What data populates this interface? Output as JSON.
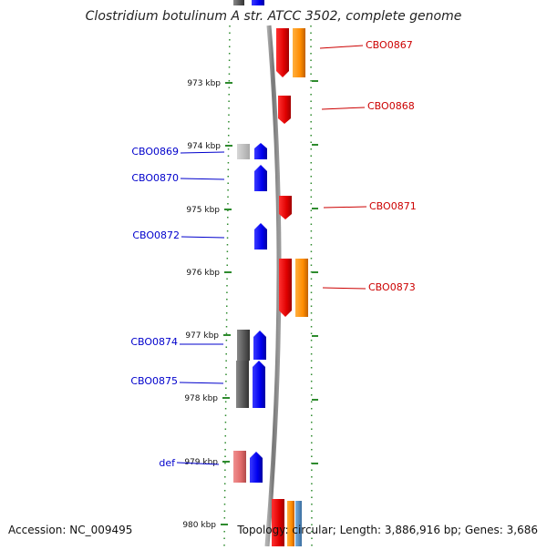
{
  "title": "Clostridium botulinum A str. ATCC 3502, complete genome",
  "footer": {
    "accession": "Accession: NC_009495",
    "topology": "Topology: circular; Length: 3,886,916 bp; Genes: 3,686"
  },
  "colors": {
    "backbone": "#808080",
    "dotted_axis": "#2e8b2e",
    "forward_label": "#cc0000",
    "reverse_label": "#0000cc",
    "cds_red": "#ff0000",
    "cds_blue": "#0000ff",
    "cds_orange": "#ff8c00",
    "gene_gray": "#5a5a5a",
    "gene_pink": "#e07070",
    "rna_steelblue": "#4682b4"
  },
  "ticks": [
    "973 kbp",
    "974 kbp",
    "975 kbp",
    "976 kbp",
    "977 kbp",
    "978 kbp",
    "979 kbp",
    "980 kbp"
  ],
  "genes": [
    {
      "label": "CBO0867",
      "strand": "+"
    },
    {
      "label": "CBO0868",
      "strand": "+"
    },
    {
      "label": "CBO0869",
      "strand": "-"
    },
    {
      "label": "CBO0870",
      "strand": "-"
    },
    {
      "label": "CBO0871",
      "strand": "+"
    },
    {
      "label": "CBO0872",
      "strand": "-"
    },
    {
      "label": "CBO0873",
      "strand": "+"
    },
    {
      "label": "CBO0874",
      "strand": "-"
    },
    {
      "label": "CBO0875",
      "strand": "-"
    },
    {
      "label": "def",
      "strand": "-"
    }
  ]
}
